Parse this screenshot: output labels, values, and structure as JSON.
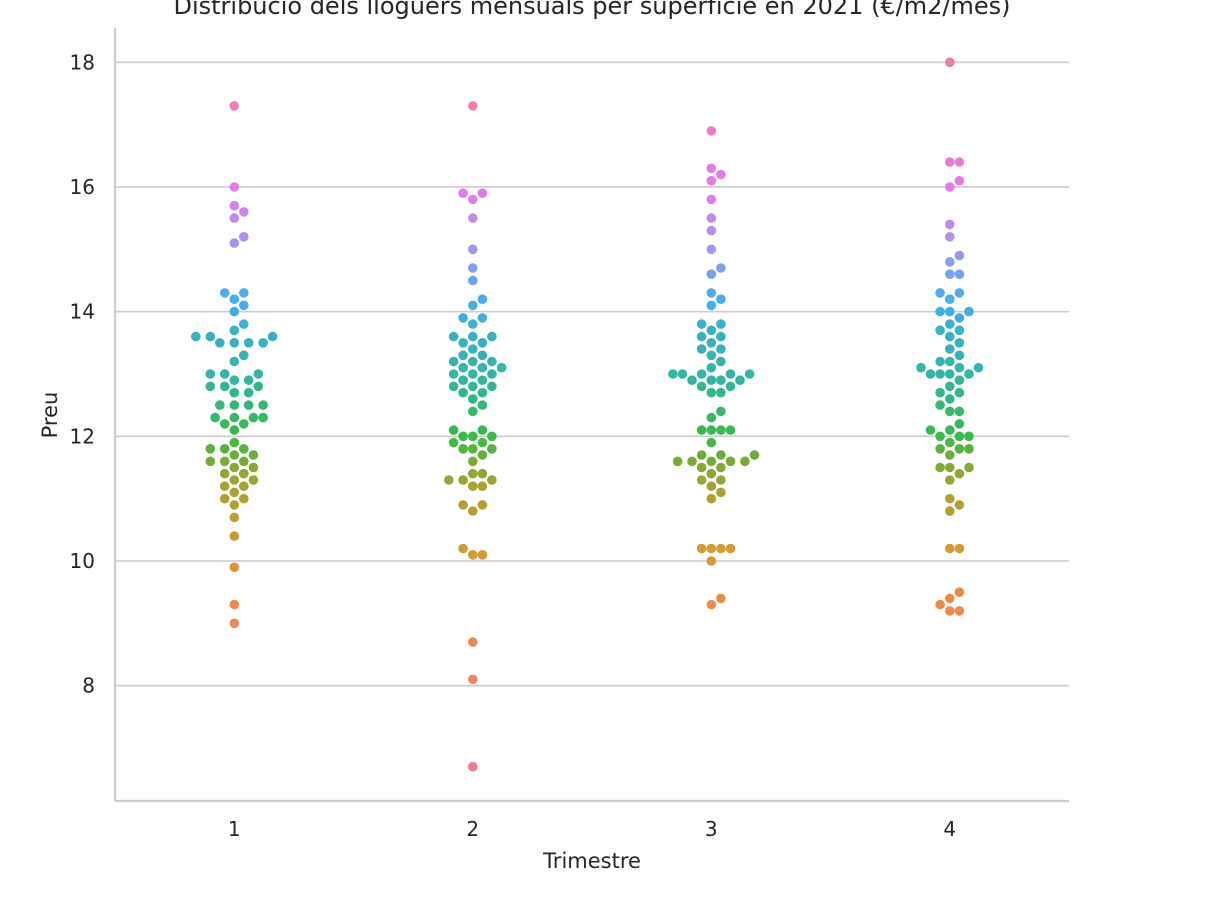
{
  "chart_data": {
    "type": "scatter",
    "subtype": "swarm",
    "title": "Distribució dels lloguers mensuals per superfície en 2021 (€/m2/mes)",
    "xlabel": "Trimestre",
    "ylabel": "Preu",
    "categories": [
      "1",
      "2",
      "3",
      "4"
    ],
    "ylim": [
      6.15,
      18.55
    ],
    "yticks": [
      8,
      10,
      12,
      14,
      16,
      18
    ],
    "grid": "horizontal",
    "legend": "none",
    "series": [
      {
        "values": [
          9.0,
          9.3,
          9.9,
          10.4,
          10.7,
          10.9,
          11.0,
          11.0,
          11.1,
          11.2,
          11.2,
          11.3,
          11.3,
          11.4,
          11.4,
          11.5,
          11.5,
          11.6,
          11.6,
          11.6,
          11.7,
          11.7,
          11.8,
          11.8,
          11.8,
          11.9,
          12.1,
          12.2,
          12.2,
          12.3,
          12.3,
          12.3,
          12.3,
          12.5,
          12.5,
          12.5,
          12.5,
          12.7,
          12.7,
          12.8,
          12.8,
          12.8,
          12.9,
          12.9,
          13.0,
          13.0,
          13.0,
          13.2,
          13.3,
          13.5,
          13.5,
          13.5,
          13.5,
          13.6,
          13.6,
          13.6,
          13.7,
          13.8,
          14.0,
          14.1,
          14.2,
          14.3,
          14.3,
          15.1,
          15.2,
          15.5,
          15.6,
          15.7,
          16.0,
          17.3
        ]
      },
      {
        "values": [
          6.7,
          8.1,
          8.7,
          10.1,
          10.1,
          10.2,
          10.8,
          10.9,
          10.9,
          11.2,
          11.2,
          11.3,
          11.3,
          11.3,
          11.4,
          11.4,
          11.6,
          11.7,
          11.8,
          11.8,
          11.8,
          11.9,
          11.9,
          12.0,
          12.0,
          12.0,
          12.1,
          12.1,
          12.4,
          12.5,
          12.6,
          12.7,
          12.7,
          12.8,
          12.8,
          12.8,
          12.9,
          12.9,
          13.0,
          13.0,
          13.0,
          13.1,
          13.1,
          13.1,
          13.2,
          13.2,
          13.2,
          13.3,
          13.3,
          13.4,
          13.5,
          13.5,
          13.6,
          13.6,
          13.6,
          13.8,
          13.9,
          13.9,
          14.1,
          14.2,
          14.5,
          14.7,
          15.0,
          15.5,
          15.8,
          15.9,
          15.9,
          17.3
        ]
      },
      {
        "values": [
          9.3,
          9.4,
          10.0,
          10.2,
          10.2,
          10.2,
          10.2,
          11.0,
          11.1,
          11.2,
          11.3,
          11.3,
          11.4,
          11.5,
          11.5,
          11.6,
          11.6,
          11.6,
          11.6,
          11.6,
          11.7,
          11.7,
          11.7,
          11.9,
          12.1,
          12.1,
          12.1,
          12.1,
          12.3,
          12.4,
          12.7,
          12.7,
          12.8,
          12.8,
          12.9,
          12.9,
          12.9,
          12.9,
          13.0,
          13.0,
          13.0,
          13.0,
          13.0,
          13.1,
          13.2,
          13.3,
          13.4,
          13.4,
          13.5,
          13.6,
          13.6,
          13.7,
          13.8,
          13.8,
          14.1,
          14.2,
          14.3,
          14.6,
          14.7,
          15.0,
          15.3,
          15.5,
          15.8,
          16.1,
          16.2,
          16.3,
          16.9
        ]
      },
      {
        "values": [
          9.2,
          9.2,
          9.3,
          9.4,
          9.5,
          10.2,
          10.2,
          10.8,
          10.9,
          11.0,
          11.3,
          11.4,
          11.5,
          11.5,
          11.5,
          11.7,
          11.8,
          11.8,
          11.8,
          11.9,
          12.0,
          12.0,
          12.0,
          12.1,
          12.1,
          12.2,
          12.4,
          12.4,
          12.5,
          12.6,
          12.7,
          12.7,
          12.8,
          12.9,
          13.0,
          13.0,
          13.0,
          13.0,
          13.1,
          13.1,
          13.1,
          13.2,
          13.2,
          13.3,
          13.4,
          13.5,
          13.6,
          13.7,
          13.7,
          13.8,
          13.9,
          14.0,
          14.0,
          14.0,
          14.2,
          14.3,
          14.3,
          14.6,
          14.6,
          14.8,
          14.9,
          15.2,
          15.4,
          16.0,
          16.1,
          16.4,
          16.4,
          18.0
        ]
      }
    ],
    "color_scale": {
      "stops": [
        {
          "value": 6.7,
          "color": "#f07d8a"
        },
        {
          "value": 9.3,
          "color": "#f08a4c"
        },
        {
          "value": 10.2,
          "color": "#d49a33"
        },
        {
          "value": 11.2,
          "color": "#a8a232"
        },
        {
          "value": 11.6,
          "color": "#78ad34"
        },
        {
          "value": 12.0,
          "color": "#38bb4a"
        },
        {
          "value": 12.5,
          "color": "#33b878"
        },
        {
          "value": 13.0,
          "color": "#34b5a8"
        },
        {
          "value": 13.6,
          "color": "#36b2c4"
        },
        {
          "value": 14.2,
          "color": "#45aef0"
        },
        {
          "value": 14.8,
          "color": "#8c9ef0"
        },
        {
          "value": 15.3,
          "color": "#b88ff0"
        },
        {
          "value": 16.0,
          "color": "#e57be8"
        },
        {
          "value": 17.0,
          "color": "#f07cc0"
        },
        {
          "value": 18.0,
          "color": "#f0809a"
        }
      ]
    }
  }
}
